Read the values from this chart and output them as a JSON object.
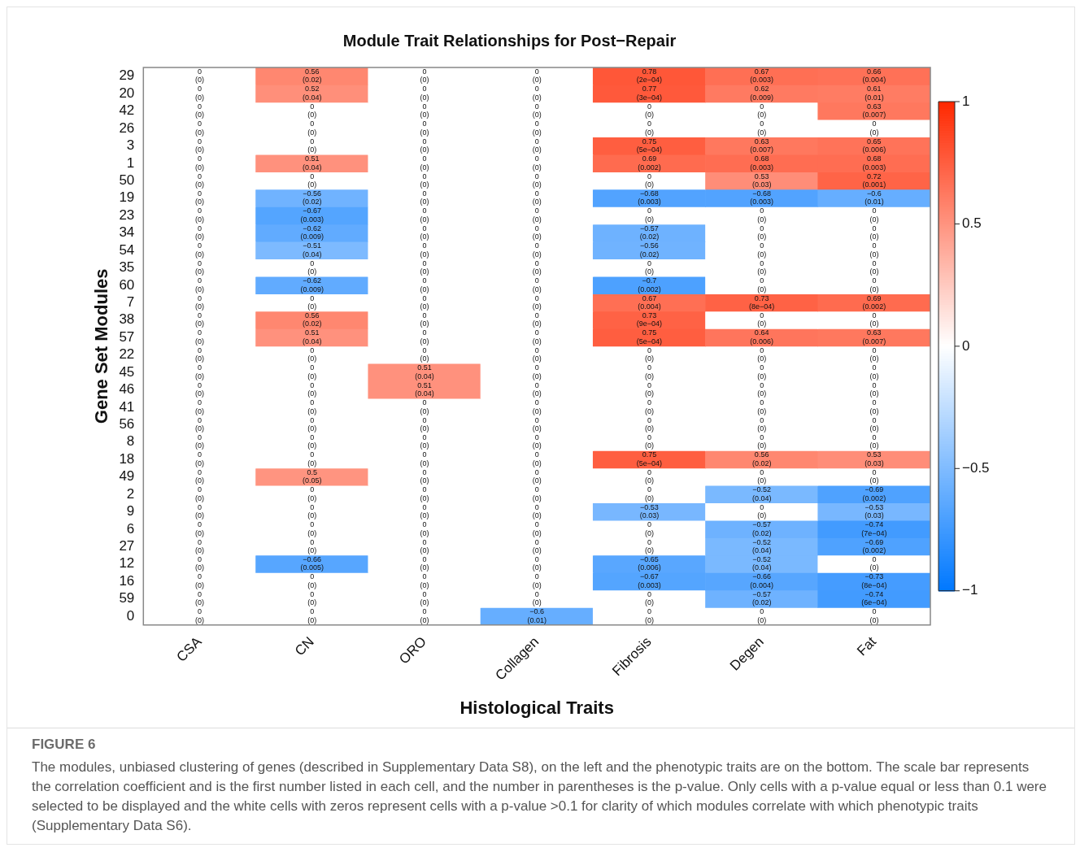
{
  "chart_data": {
    "type": "heatmap",
    "title": "Module Trait Relationships for Post−Repair",
    "xlabel": "Histological Traits",
    "ylabel": "Gene Set Modules",
    "categories": [
      "CSA",
      "CN",
      "ORO",
      "Collagen",
      "Fibrosis",
      "Degen",
      "Fat"
    ],
    "y_categories": [
      "29",
      "20",
      "42",
      "26",
      "3",
      "1",
      "50",
      "19",
      "23",
      "34",
      "54",
      "35",
      "60",
      "7",
      "38",
      "57",
      "22",
      "45",
      "46",
      "41",
      "56",
      "8",
      "18",
      "49",
      "2",
      "9",
      "6",
      "27",
      "12",
      "16",
      "59",
      "0"
    ],
    "cells": [
      [
        0,
        0.56,
        0,
        0,
        0.78,
        0.67,
        0.66
      ],
      [
        0,
        0.52,
        0,
        0,
        0.77,
        0.62,
        0.61
      ],
      [
        0,
        0,
        0,
        0,
        0,
        0,
        0.63
      ],
      [
        0,
        0,
        0,
        0,
        0,
        0,
        0
      ],
      [
        0,
        0,
        0,
        0,
        0.75,
        0.63,
        0.65
      ],
      [
        0,
        0.51,
        0,
        0,
        0.69,
        0.68,
        0.68
      ],
      [
        0,
        0,
        0,
        0,
        0,
        0.53,
        0.72
      ],
      [
        0,
        -0.56,
        0,
        0,
        -0.68,
        -0.68,
        -0.6
      ],
      [
        0,
        -0.67,
        0,
        0,
        0,
        0,
        0
      ],
      [
        0,
        -0.62,
        0,
        0,
        -0.57,
        0,
        0
      ],
      [
        0,
        -0.51,
        0,
        0,
        -0.56,
        0,
        0
      ],
      [
        0,
        0,
        0,
        0,
        0,
        0,
        0
      ],
      [
        0,
        -0.62,
        0,
        0,
        -0.7,
        0,
        0
      ],
      [
        0,
        0,
        0,
        0,
        0.67,
        0.73,
        0.69
      ],
      [
        0,
        0.56,
        0,
        0,
        0.73,
        0,
        0
      ],
      [
        0,
        0.51,
        0,
        0,
        0.75,
        0.64,
        0.63
      ],
      [
        0,
        0,
        0,
        0,
        0,
        0,
        0
      ],
      [
        0,
        0,
        0.51,
        0,
        0,
        0,
        0
      ],
      [
        0,
        0,
        0.51,
        0,
        0,
        0,
        0
      ],
      [
        0,
        0,
        0,
        0,
        0,
        0,
        0
      ],
      [
        0,
        0,
        0,
        0,
        0,
        0,
        0
      ],
      [
        0,
        0,
        0,
        0,
        0,
        0,
        0
      ],
      [
        0,
        0,
        0,
        0,
        0.75,
        0.56,
        0.53
      ],
      [
        0,
        0.5,
        0,
        0,
        0,
        0,
        0
      ],
      [
        0,
        0,
        0,
        0,
        0,
        -0.52,
        -0.69
      ],
      [
        0,
        0,
        0,
        0,
        -0.53,
        0,
        -0.53
      ],
      [
        0,
        0,
        0,
        0,
        0,
        -0.57,
        -0.74
      ],
      [
        0,
        0,
        0,
        0,
        0,
        -0.52,
        -0.69
      ],
      [
        0,
        -0.66,
        0,
        0,
        -0.65,
        -0.52,
        0
      ],
      [
        0,
        0,
        0,
        0,
        -0.67,
        -0.66,
        -0.73
      ],
      [
        0,
        0,
        0,
        0,
        0,
        -0.57,
        -0.74
      ],
      [
        0,
        0,
        0,
        -0.6,
        0,
        0,
        0
      ]
    ],
    "cell_labels": [
      [
        "0\n(0)",
        "0.56\n(0.02)",
        "0\n(0)",
        "0\n(0)",
        "0.78\n(2e−04)",
        "0.67\n(0.003)",
        "0.66\n(0.004)"
      ],
      [
        "0\n(0)",
        "0.52\n(0.04)",
        "0\n(0)",
        "0\n(0)",
        "0.77\n(3e−04)",
        "0.62\n(0.009)",
        "0.61\n(0.01)"
      ],
      [
        "0\n(0)",
        "0\n(0)",
        "0\n(0)",
        "0\n(0)",
        "0\n(0)",
        "0\n(0)",
        "0.63\n(0.007)"
      ],
      [
        "0\n(0)",
        "0\n(0)",
        "0\n(0)",
        "0\n(0)",
        "0\n(0)",
        "0\n(0)",
        "0\n(0)"
      ],
      [
        "0\n(0)",
        "0\n(0)",
        "0\n(0)",
        "0\n(0)",
        "0.75\n(5e−04)",
        "0.63\n(0.007)",
        "0.65\n(0.006)"
      ],
      [
        "0\n(0)",
        "0.51\n(0.04)",
        "0\n(0)",
        "0\n(0)",
        "0.69\n(0.002)",
        "0.68\n(0.003)",
        "0.68\n(0.003)"
      ],
      [
        "0\n(0)",
        "0\n(0)",
        "0\n(0)",
        "0\n(0)",
        "0\n(0)",
        "0.53\n(0.03)",
        "0.72\n(0.001)"
      ],
      [
        "0\n(0)",
        "−0.56\n(0.02)",
        "0\n(0)",
        "0\n(0)",
        "−0.68\n(0.003)",
        "−0.68\n(0.003)",
        "−0.6\n(0.01)"
      ],
      [
        "0\n(0)",
        "−0.67\n(0.003)",
        "0\n(0)",
        "0\n(0)",
        "0\n(0)",
        "0\n(0)",
        "0\n(0)"
      ],
      [
        "0\n(0)",
        "−0.62\n(0.009)",
        "0\n(0)",
        "0\n(0)",
        "−0.57\n(0.02)",
        "0\n(0)",
        "0\n(0)"
      ],
      [
        "0\n(0)",
        "−0.51\n(0.04)",
        "0\n(0)",
        "0\n(0)",
        "−0.56\n(0.02)",
        "0\n(0)",
        "0\n(0)"
      ],
      [
        "0\n(0)",
        "0\n(0)",
        "0\n(0)",
        "0\n(0)",
        "0\n(0)",
        "0\n(0)",
        "0\n(0)"
      ],
      [
        "0\n(0)",
        "−0.62\n(0.009)",
        "0\n(0)",
        "0\n(0)",
        "−0.7\n(0.002)",
        "0\n(0)",
        "0\n(0)"
      ],
      [
        "0\n(0)",
        "0\n(0)",
        "0\n(0)",
        "0\n(0)",
        "0.67\n(0.004)",
        "0.73\n(8e−04)",
        "0.69\n(0.002)"
      ],
      [
        "0\n(0)",
        "0.56\n(0.02)",
        "0\n(0)",
        "0\n(0)",
        "0.73\n(9e−04)",
        "0\n(0)",
        "0\n(0)"
      ],
      [
        "0\n(0)",
        "0.51\n(0.04)",
        "0\n(0)",
        "0\n(0)",
        "0.75\n(5e−04)",
        "0.64\n(0.006)",
        "0.63\n(0.007)"
      ],
      [
        "0\n(0)",
        "0\n(0)",
        "0\n(0)",
        "0\n(0)",
        "0\n(0)",
        "0\n(0)",
        "0\n(0)"
      ],
      [
        "0\n(0)",
        "0\n(0)",
        "0.51\n(0.04)",
        "0\n(0)",
        "0\n(0)",
        "0\n(0)",
        "0\n(0)"
      ],
      [
        "0\n(0)",
        "0\n(0)",
        "0.51\n(0.04)",
        "0\n(0)",
        "0\n(0)",
        "0\n(0)",
        "0\n(0)"
      ],
      [
        "0\n(0)",
        "0\n(0)",
        "0\n(0)",
        "0\n(0)",
        "0\n(0)",
        "0\n(0)",
        "0\n(0)"
      ],
      [
        "0\n(0)",
        "0\n(0)",
        "0\n(0)",
        "0\n(0)",
        "0\n(0)",
        "0\n(0)",
        "0\n(0)"
      ],
      [
        "0\n(0)",
        "0\n(0)",
        "0\n(0)",
        "0\n(0)",
        "0\n(0)",
        "0\n(0)",
        "0\n(0)"
      ],
      [
        "0\n(0)",
        "0\n(0)",
        "0\n(0)",
        "0\n(0)",
        "0.75\n(5e−04)",
        "0.56\n(0.02)",
        "0.53\n(0.03)"
      ],
      [
        "0\n(0)",
        "0.5\n(0.05)",
        "0\n(0)",
        "0\n(0)",
        "0\n(0)",
        "0\n(0)",
        "0\n(0)"
      ],
      [
        "0\n(0)",
        "0\n(0)",
        "0\n(0)",
        "0\n(0)",
        "0\n(0)",
        "−0.52\n(0.04)",
        "−0.69\n(0.002)"
      ],
      [
        "0\n(0)",
        "0\n(0)",
        "0\n(0)",
        "0\n(0)",
        "−0.53\n(0.03)",
        "0\n(0)",
        "−0.53\n(0.03)"
      ],
      [
        "0\n(0)",
        "0\n(0)",
        "0\n(0)",
        "0\n(0)",
        "0\n(0)",
        "−0.57\n(0.02)",
        "−0.74\n(7e−04)"
      ],
      [
        "0\n(0)",
        "0\n(0)",
        "0\n(0)",
        "0\n(0)",
        "0\n(0)",
        "−0.52\n(0.04)",
        "−0.69\n(0.002)"
      ],
      [
        "0\n(0)",
        "−0.66\n(0.005)",
        "0\n(0)",
        "0\n(0)",
        "−0.65\n(0.006)",
        "−0.52\n(0.04)",
        "0\n(0)"
      ],
      [
        "0\n(0)",
        "0\n(0)",
        "0\n(0)",
        "0\n(0)",
        "−0.67\n(0.003)",
        "−0.66\n(0.004)",
        "−0.73\n(8e−04)"
      ],
      [
        "0\n(0)",
        "0\n(0)",
        "0\n(0)",
        "0\n(0)",
        "0\n(0)",
        "−0.57\n(0.02)",
        "−0.74\n(6e−04)"
      ],
      [
        "0\n(0)",
        "0\n(0)",
        "0\n(0)",
        "−0.6\n(0.01)",
        "0\n(0)",
        "0\n(0)",
        "0\n(0)"
      ]
    ],
    "clim": [
      -1,
      1
    ],
    "cticks": [
      {
        "value": -1,
        "label": "−1"
      },
      {
        "value": -0.5,
        "label": "−0.5"
      },
      0,
      0.5,
      1
    ],
    "annotations": [
      "FIGURE 6",
      "The modules, unbiased clustering of genes (described in Supplementary Data S8), on the left and the phenotypic traits are on the bottom. The scale bar represents the correlation coefficient and is the first number listed in each cell, and the number in parentheses is the p-value. Only cells with a p-value equal or less than 0.1 were selected to be displayed and the white cells with zeros represent cells with a p-value >0.1 for clarity of which modules correlate with which phenotypic traits (Supplementary Data S6)."
    ]
  }
}
